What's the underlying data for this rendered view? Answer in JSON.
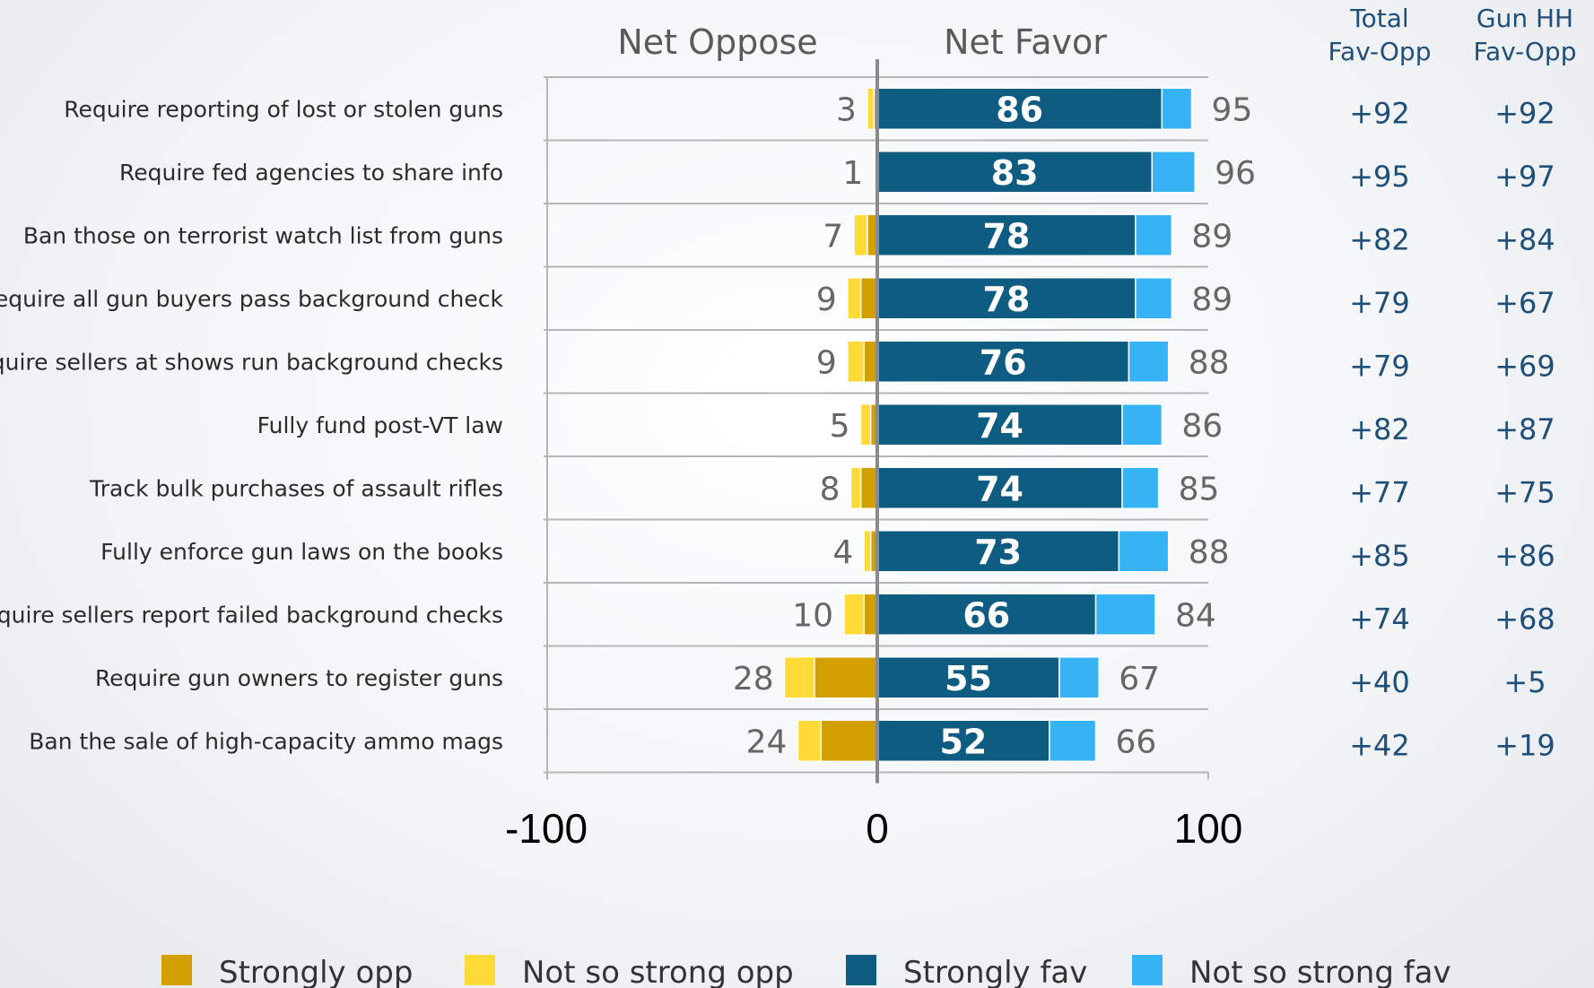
{
  "chart_data": {
    "type": "bar",
    "subtype": "diverging-stacked-horizontal",
    "headers": {
      "left": "Net Oppose",
      "right": "Net Favor"
    },
    "table_headers": {
      "total": [
        "Total",
        "Fav-Opp"
      ],
      "gunhh": [
        "Gun HH",
        "Fav-Opp"
      ]
    },
    "xlim": [
      -100,
      100
    ],
    "xticks": [
      "-100",
      "0",
      "100"
    ],
    "grid": true,
    "legend_position": "bottom",
    "series_meta": [
      {
        "key": "strongly_opp",
        "name": "Strongly opp",
        "color": "#d4a000"
      },
      {
        "key": "not_so_strong_opp",
        "name": "Not so strong opp",
        "color": "#fdda36"
      },
      {
        "key": "strongly_fav",
        "name": "Strongly fav",
        "color": "#0e5c82"
      },
      {
        "key": "not_so_strong_fav",
        "name": "Not so strong fav",
        "color": "#36b3f5"
      }
    ],
    "rows": [
      {
        "label": "Require reporting of lost or stolen guns",
        "strongly_opp": 1,
        "not_so_strong_opp": 2,
        "opp_total": "3",
        "strongly_fav": 86,
        "strongly_fav_label": "86",
        "not_so_strong_fav": 9,
        "fav_total": "95",
        "total": "+92",
        "gunhh": "+92"
      },
      {
        "label": "Require fed agencies to share info",
        "strongly_opp": 0.5,
        "not_so_strong_opp": 0.5,
        "opp_total": "1",
        "strongly_fav": 83,
        "strongly_fav_label": "83",
        "not_so_strong_fav": 13,
        "fav_total": "96",
        "total": "+95",
        "gunhh": "+97"
      },
      {
        "label": "Ban those on terrorist watch list from guns",
        "strongly_opp": 3,
        "not_so_strong_opp": 4,
        "opp_total": "7",
        "strongly_fav": 78,
        "strongly_fav_label": "78",
        "not_so_strong_fav": 11,
        "fav_total": "89",
        "total": "+82",
        "gunhh": "+84"
      },
      {
        "label": "Require all gun buyers pass background check",
        "strongly_opp": 5,
        "not_so_strong_opp": 4,
        "opp_total": "9",
        "strongly_fav": 78,
        "strongly_fav_label": "78",
        "not_so_strong_fav": 11,
        "fav_total": "89",
        "total": "+79",
        "gunhh": "+67"
      },
      {
        "label": "Require sellers at shows run background checks",
        "strongly_opp": 4,
        "not_so_strong_opp": 5,
        "opp_total": "9",
        "strongly_fav": 76,
        "strongly_fav_label": "76",
        "not_so_strong_fav": 12,
        "fav_total": "88",
        "total": "+79",
        "gunhh": "+69"
      },
      {
        "label": "Fully fund post-VT law",
        "strongly_opp": 2,
        "not_so_strong_opp": 3,
        "opp_total": "5",
        "strongly_fav": 74,
        "strongly_fav_label": "74",
        "not_so_strong_fav": 12,
        "fav_total": "86",
        "total": "+82",
        "gunhh": "+87"
      },
      {
        "label": "Track bulk purchases of assault rifles",
        "strongly_opp": 5,
        "not_so_strong_opp": 3,
        "opp_total": "8",
        "strongly_fav": 74,
        "strongly_fav_label": "74",
        "not_so_strong_fav": 11,
        "fav_total": "85",
        "total": "+77",
        "gunhh": "+75"
      },
      {
        "label": "Fully enforce gun laws on the books",
        "strongly_opp": 2,
        "not_so_strong_opp": 2,
        "opp_total": "4",
        "strongly_fav": 73,
        "strongly_fav_label": "73",
        "not_so_strong_fav": 15,
        "fav_total": "88",
        "total": "+85",
        "gunhh": "+86"
      },
      {
        "label": "Require sellers report failed background checks",
        "strongly_opp": 4,
        "not_so_strong_opp": 6,
        "opp_total": "10",
        "strongly_fav": 66,
        "strongly_fav_label": "66",
        "not_so_strong_fav": 18,
        "fav_total": "84",
        "total": "+74",
        "gunhh": "+68"
      },
      {
        "label": "Require gun owners to register guns",
        "strongly_opp": 19,
        "not_so_strong_opp": 9,
        "opp_total": "28",
        "strongly_fav": 55,
        "strongly_fav_label": "55",
        "not_so_strong_fav": 12,
        "fav_total": "67",
        "total": "+40",
        "gunhh": "+5"
      },
      {
        "label": "Ban the sale of high-capacity ammo mags",
        "strongly_opp": 17,
        "not_so_strong_opp": 7,
        "opp_total": "24",
        "strongly_fav": 52,
        "strongly_fav_label": "52",
        "not_so_strong_fav": 14,
        "fav_total": "66",
        "total": "+42",
        "gunhh": "+19"
      }
    ]
  }
}
